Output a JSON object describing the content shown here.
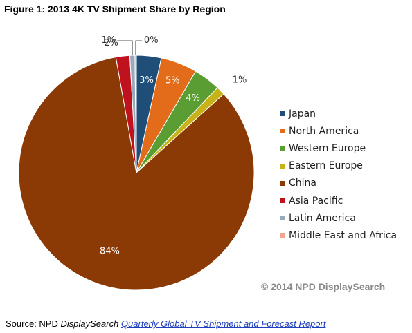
{
  "figure_title": "Figure 1: 2013 4K TV Shipment Share by Region",
  "watermark": "© 2014 NPD DisplaySearch",
  "source": {
    "prefix": "Source: NPD ",
    "brand": "DisplaySearch",
    "report_link": "Quarterly Global TV Shipment and Forecast Report"
  },
  "chart_data": {
    "type": "pie",
    "title": "",
    "legend_position": "right",
    "slices": [
      {
        "name": "Japan",
        "value": 3.4,
        "label": "3%",
        "color": "#1f4e79"
      },
      {
        "name": "North America",
        "value": 5.0,
        "label": "5%",
        "color": "#e36c1a"
      },
      {
        "name": "Western Europe",
        "value": 3.7,
        "label": "4%",
        "color": "#5a9e33"
      },
      {
        "name": "Eastern Europe",
        "value": 1.2,
        "label": "1%",
        "color": "#c8b21a"
      },
      {
        "name": "China",
        "value": 83.9,
        "label": "84%",
        "color": "#8b3a05"
      },
      {
        "name": "Asia Pacific",
        "value": 1.9,
        "label": "2%",
        "color": "#c0121e"
      },
      {
        "name": "Latin America",
        "value": 0.7,
        "label": "1%",
        "color": "#9aaabd"
      },
      {
        "name": "Middle East and Africa",
        "value": 0.2,
        "label": "0%",
        "color": "#f2a592"
      }
    ]
  }
}
